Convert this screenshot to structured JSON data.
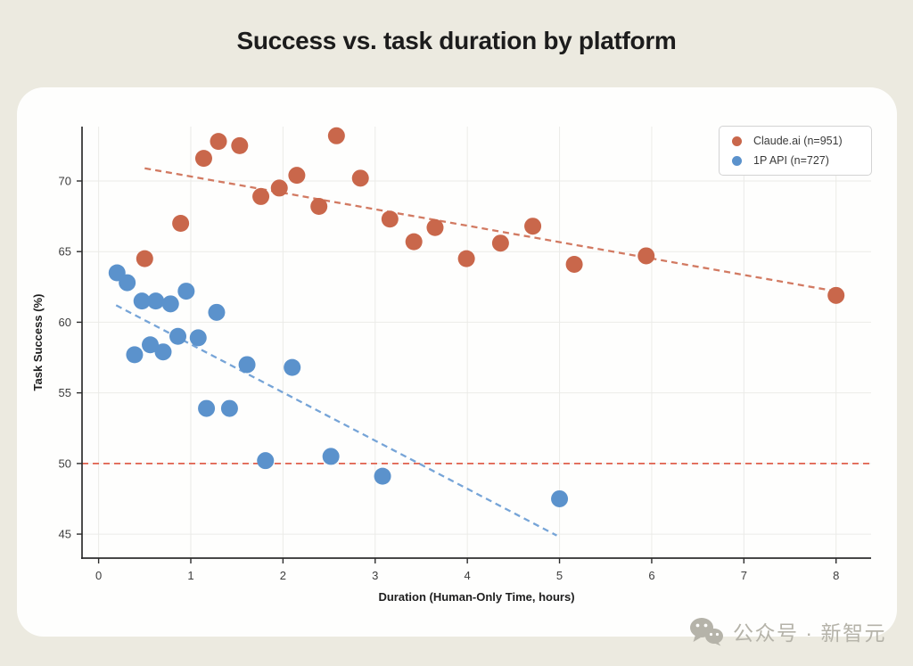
{
  "page": {
    "title": "Success vs. task duration by platform",
    "background_color": "#ECEAE0",
    "card_color": "#FEFEFD"
  },
  "watermark": {
    "icon": "wechat-icon",
    "text": "公众号 · 新智元",
    "color": "#B5B3A9"
  },
  "chart_data": {
    "type": "scatter",
    "title": "Success vs. task duration by platform",
    "xlabel": "Duration (Human-Only Time, hours)",
    "ylabel": "Task Success (%)",
    "xlim": [
      -0.18,
      8.38
    ],
    "ylim": [
      43.3,
      73.85
    ],
    "x_ticks": [
      0,
      1,
      2,
      3,
      4,
      5,
      6,
      7,
      8
    ],
    "y_ticks": [
      45,
      50,
      55,
      60,
      65,
      70
    ],
    "grid": true,
    "legend_position": "top-right",
    "axis_color": "#2D2D2D",
    "grid_color": "#EBEBE8",
    "series": [
      {
        "name": "Claude.ai (n=951)",
        "n": 951,
        "color": "#C9674B",
        "trend_color": "#D0735A",
        "points": [
          [
            0.5,
            64.5
          ],
          [
            0.89,
            67.0
          ],
          [
            1.14,
            71.6
          ],
          [
            1.3,
            72.8
          ],
          [
            1.53,
            72.5
          ],
          [
            1.76,
            68.9
          ],
          [
            1.96,
            69.5
          ],
          [
            2.15,
            70.4
          ],
          [
            2.39,
            68.2
          ],
          [
            2.58,
            73.2
          ],
          [
            2.84,
            70.2
          ],
          [
            3.16,
            67.3
          ],
          [
            3.42,
            65.7
          ],
          [
            3.65,
            66.7
          ],
          [
            3.99,
            64.5
          ],
          [
            4.36,
            65.6
          ],
          [
            4.71,
            66.8
          ],
          [
            5.16,
            64.1
          ],
          [
            5.94,
            64.7
          ],
          [
            8.0,
            61.9
          ]
        ],
        "trendline": {
          "x1": 0.5,
          "y1": 70.9,
          "x2": 7.99,
          "y2": 62.2,
          "style": "dashed"
        }
      },
      {
        "name": "1P API (n=727)",
        "n": 727,
        "color": "#5B92CC",
        "trend_color": "#6FA0D6",
        "points": [
          [
            0.2,
            63.5
          ],
          [
            0.31,
            62.8
          ],
          [
            0.39,
            57.7
          ],
          [
            0.47,
            61.5
          ],
          [
            0.56,
            58.4
          ],
          [
            0.62,
            61.5
          ],
          [
            0.7,
            57.9
          ],
          [
            0.78,
            61.3
          ],
          [
            0.86,
            59.0
          ],
          [
            0.95,
            62.2
          ],
          [
            1.08,
            58.9
          ],
          [
            1.17,
            53.9
          ],
          [
            1.28,
            60.7
          ],
          [
            1.42,
            53.9
          ],
          [
            1.61,
            57.0
          ],
          [
            1.81,
            50.2
          ],
          [
            2.1,
            56.8
          ],
          [
            2.52,
            50.5
          ],
          [
            3.08,
            49.1
          ],
          [
            5.0,
            47.5
          ]
        ],
        "trendline": {
          "x1": 0.19,
          "y1": 61.2,
          "x2": 4.97,
          "y2": 44.9,
          "style": "dashed"
        }
      }
    ],
    "reference_line": {
      "y": 50,
      "color": "#DF5F4C",
      "style": "dashed"
    }
  }
}
